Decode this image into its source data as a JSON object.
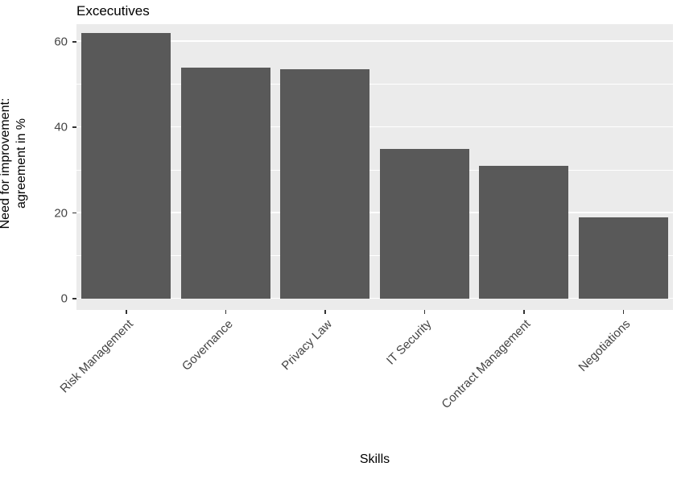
{
  "chart_data": {
    "type": "bar",
    "title": "Excecutives",
    "xlabel": "Skills",
    "ylabel": "Need for improvement:\nagreement in %",
    "categories": [
      "Risk Management",
      "Governance",
      "Privacy Law",
      "IT Security",
      "Contract Management",
      "Negotiations"
    ],
    "values": [
      62,
      54,
      53.5,
      35,
      31,
      19
    ],
    "ylim": [
      0,
      65
    ],
    "yticks": [
      0,
      20,
      40,
      60
    ],
    "yticks_minor": [
      10,
      30,
      50
    ],
    "bar_color": "#595959",
    "panel_bg": "#EBEBEB",
    "grid": "on",
    "legend": "none",
    "bar_width_fraction": 0.9
  }
}
